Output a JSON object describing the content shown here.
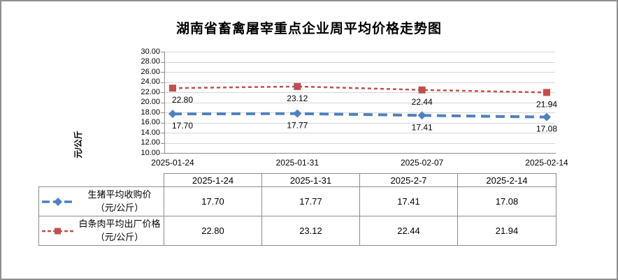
{
  "chart_data": {
    "type": "line",
    "title": "湖南省畜禽屠宰重点企业周平均价格走势图",
    "categories": [
      "2025-01-24",
      "2025-01-31",
      "2025-02-07",
      "2025-02-14"
    ],
    "series": [
      {
        "name": "生猪平均收购价（元/公斤）",
        "values": [
          17.7,
          17.77,
          17.41,
          17.08
        ],
        "color": "#4F81BD",
        "marker": "diamond",
        "dash": "long"
      },
      {
        "name": "白条肉平均出厂价格（元/公斤）",
        "values": [
          22.8,
          23.12,
          22.44,
          21.94
        ],
        "color": "#C0504D",
        "marker": "square",
        "dash": "short"
      }
    ],
    "ylabel": "元/公斤",
    "ylim": [
      10,
      30
    ],
    "ytick_step": 2,
    "ytick_format_decimals": 2,
    "grid": true,
    "legend_position": "bottom-table",
    "data_labels_shown": true
  },
  "table": {
    "headers": [
      "2025-1-24",
      "2025-1-31",
      "2025-2-7",
      "2025-2-14"
    ],
    "rows": [
      {
        "name_line1": "生猪平均收购价",
        "name_line2": "（元/公斤）",
        "values": [
          "17.70",
          "17.77",
          "17.41",
          "17.08"
        ]
      },
      {
        "name_line1": "白条肉平均出厂价格",
        "name_line2": "（元/公斤）",
        "values": [
          "22.80",
          "23.12",
          "22.44",
          "21.94"
        ]
      }
    ]
  }
}
